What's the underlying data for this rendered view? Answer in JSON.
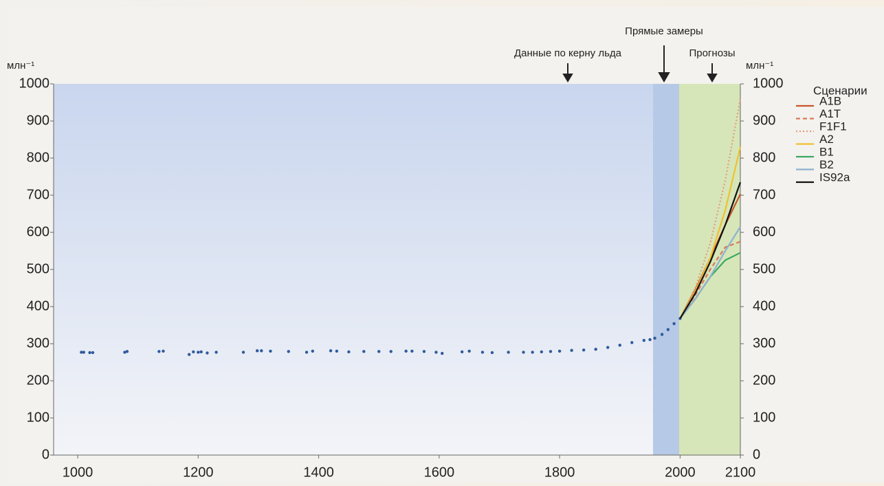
{
  "chart_data": {
    "type": "line",
    "annotations": [
      "Данные по керну льда",
      "Прямые замеры",
      "Прогнозы"
    ],
    "y_label": "млн⁻¹",
    "y2_label": "млн⁻¹",
    "legend_title": "Сценарии",
    "legend_position": "right",
    "xlim": [
      960,
      2100
    ],
    "xticks": [
      1000,
      1200,
      1400,
      1600,
      1800,
      2000,
      2100
    ],
    "ylim": [
      0,
      1000
    ],
    "yticks": [
      0,
      100,
      200,
      300,
      400,
      500,
      600,
      700,
      800,
      900,
      1000
    ],
    "y2lim": [
      0,
      1000
    ],
    "y2ticks": [
      0,
      100,
      200,
      300,
      400,
      500,
      600,
      700,
      800,
      900,
      1000
    ],
    "observations": {
      "color": "#2e5a9c",
      "x": [
        1006,
        1010,
        1020,
        1025,
        1078,
        1082,
        1135,
        1142,
        1185,
        1192,
        1200,
        1205,
        1215,
        1230,
        1275,
        1298,
        1305,
        1320,
        1350,
        1380,
        1390,
        1420,
        1430,
        1450,
        1475,
        1500,
        1520,
        1545,
        1555,
        1575,
        1595,
        1605,
        1638,
        1650,
        1672,
        1688,
        1715,
        1740,
        1755,
        1770,
        1785,
        1800,
        1820,
        1840,
        1860,
        1880,
        1900,
        1920,
        1940,
        1950,
        1958,
        1970,
        1980,
        1990,
        2000
      ],
      "values": [
        277,
        277,
        276,
        276,
        277,
        279,
        279,
        280,
        271,
        278,
        277,
        278,
        275,
        277,
        277,
        281,
        281,
        280,
        279,
        277,
        280,
        281,
        280,
        278,
        279,
        279,
        279,
        280,
        280,
        279,
        277,
        274,
        278,
        280,
        277,
        276,
        277,
        277,
        277,
        278,
        279,
        280,
        282,
        283,
        285,
        290,
        296,
        303,
        309,
        311,
        315,
        325,
        338,
        354,
        368
      ]
    },
    "series": [
      {
        "name": "A1B",
        "color": "#c8542a",
        "dash": "solid",
        "x": [
          2000,
          2025,
          2050,
          2075,
          2100
        ],
        "values": [
          368,
          445,
          530,
          620,
          703
        ]
      },
      {
        "name": "A1T",
        "color": "#d9775a",
        "dash": "dashed",
        "x": [
          2000,
          2025,
          2050,
          2075,
          2100
        ],
        "values": [
          368,
          430,
          500,
          560,
          575
        ]
      },
      {
        "name": "F1F1",
        "color": "#e89a80",
        "dash": "dotted",
        "x": [
          2000,
          2025,
          2050,
          2075,
          2100
        ],
        "values": [
          368,
          450,
          570,
          740,
          960
        ]
      },
      {
        "name": "A2",
        "color": "#f0c030",
        "dash": "solid",
        "x": [
          2000,
          2025,
          2050,
          2075,
          2100
        ],
        "values": [
          368,
          440,
          530,
          660,
          830
        ]
      },
      {
        "name": "B1",
        "color": "#3aa860",
        "dash": "solid",
        "x": [
          2000,
          2025,
          2050,
          2075,
          2100
        ],
        "values": [
          368,
          420,
          480,
          525,
          545
        ]
      },
      {
        "name": "B2",
        "color": "#8fb0d0",
        "dash": "solid",
        "x": [
          2000,
          2025,
          2050,
          2075,
          2100
        ],
        "values": [
          368,
          420,
          480,
          550,
          615
        ]
      },
      {
        "name": "IS92a",
        "color": "#111111",
        "dash": "solid",
        "x": [
          2000,
          2025,
          2050,
          2075,
          2100
        ],
        "values": [
          368,
          435,
          520,
          620,
          735
        ]
      }
    ]
  }
}
